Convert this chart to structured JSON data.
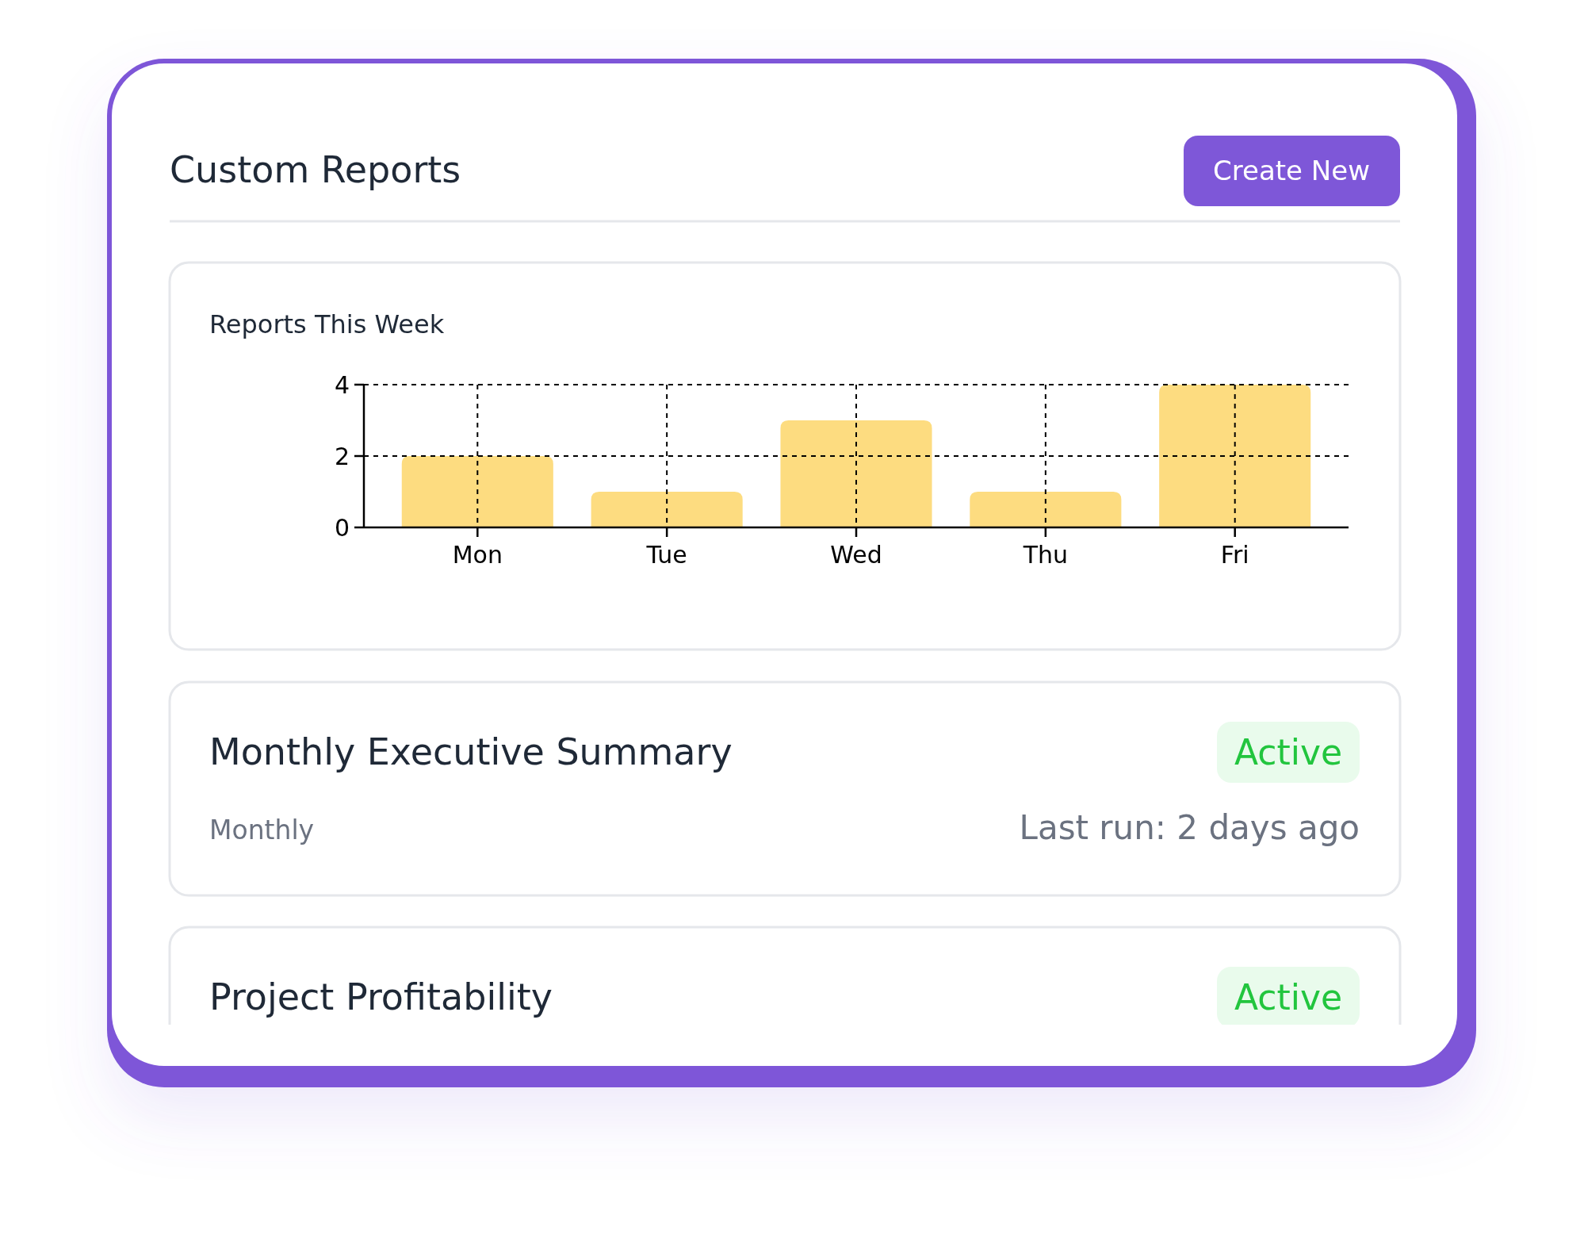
{
  "chart_data": [
    {
      "type": "other",
      "title": "Custom Reports",
      "annotations": [
        "Create New"
      ]
    },
    {
      "type": "bar",
      "title": "Reports This Week",
      "categories": [
        "Mon",
        "Tue",
        "Wed",
        "Thu",
        "Fri"
      ],
      "values": [
        2,
        1,
        3,
        1,
        4
      ],
      "color": "#fddc80",
      "ylim": [
        0,
        4
      ],
      "yticks": [
        0,
        2,
        4
      ],
      "grid": true
    },
    {
      "type": "other",
      "annotations": [
        "Monthly Executive Summary",
        "Active",
        "Monthly",
        "Last run: 2 days ago",
        "Project Profitability",
        "Active"
      ]
    }
  ]
}
